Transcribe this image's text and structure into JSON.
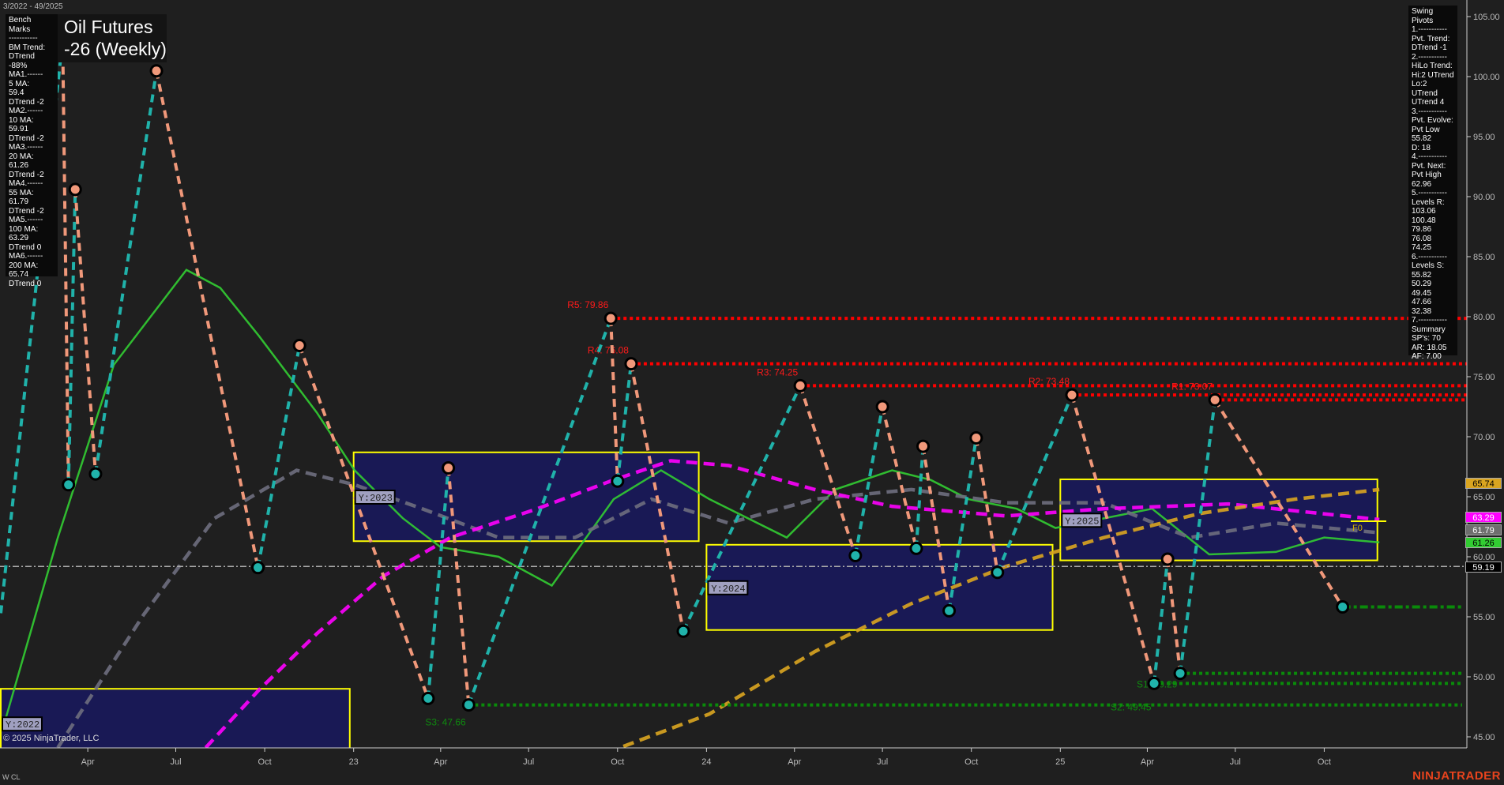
{
  "header": {
    "range": "3/2022 - 49/2025",
    "title_line1": "Oil Futures",
    "title_line2": "-26 (Weekly)"
  },
  "bench_marks": [
    "Bench Marks",
    "-----------",
    "BM Trend:",
    "DTrend -88%",
    "MA1.------",
    "5 MA:",
    "59.4",
    "DTrend -2",
    "MA2.------",
    "10 MA:",
    "59.91",
    "DTrend -2",
    "MA3.------",
    "20 MA:",
    "61.26",
    "DTrend -2",
    "MA4.------",
    "55 MA:",
    "61.79",
    "DTrend -2",
    "MA5.------",
    "100 MA:",
    "63.29",
    "DTrend 0",
    "MA6.------",
    "200 MA:",
    "65.74",
    "DTrend 0"
  ],
  "swing_pivots": [
    "Swing Pivots",
    "1.-----------",
    "Pvt. Trend:",
    "DTrend -1",
    "2.-----------",
    "HiLo Trend:",
    "Hi:2 UTrend",
    "Lo:2 UTrend",
    "UTrend 4",
    "3.-----------",
    "Pvt. Evolve:",
    "Pvt Low",
    "55.82",
    "D: 18",
    "4.-----------",
    "Pvt. Next:",
    "Pvt High",
    "62.96",
    "5.-----------",
    "Levels R:",
    "103.06",
    "100.48",
    "79.86",
    "76.08",
    "74.25",
    "6.-----------",
    "Levels S:",
    "55.82",
    "50.29",
    "49.45",
    "47.66",
    "32.38",
    "7.-----------",
    "Summary",
    "SP's: 70",
    "AR: 18.05",
    "AF: 7.00"
  ],
  "footer": {
    "copyright": "© 2025 NinjaTrader, LLC",
    "instrument": "W CL",
    "brand": "NINJATRADER"
  },
  "price_tags": [
    {
      "value": "65.74",
      "color": "#daa520",
      "text_color": "#000"
    },
    {
      "value": "63.29",
      "color": "#ff00ff",
      "text_color": "#fff"
    },
    {
      "value": "61.79",
      "color": "#6e6e6e",
      "text_color": "#fff"
    },
    {
      "value": "61.26",
      "color": "#32cd32",
      "text_color": "#000"
    },
    {
      "value": "59.19",
      "color": "#000000",
      "text_color": "#fff"
    }
  ],
  "chart_data": {
    "type": "line",
    "ylim": [
      45,
      105
    ],
    "yticks": [
      "105.00",
      "100.00",
      "95.00",
      "90.00",
      "85.00",
      "80.00",
      "75.00",
      "70.00",
      "65.00",
      "60.00",
      "55.00",
      "50.00",
      "45.00"
    ],
    "xticks": [
      {
        "label": "Apr",
        "date": "2022-04-01"
      },
      {
        "label": "Jul",
        "date": "2022-07-01"
      },
      {
        "label": "Oct",
        "date": "2022-10-01"
      },
      {
        "label": "23",
        "date": "2023-01-01"
      },
      {
        "label": "Apr",
        "date": "2023-04-01"
      },
      {
        "label": "Jul",
        "date": "2023-07-01"
      },
      {
        "label": "Oct",
        "date": "2023-10-01"
      },
      {
        "label": "24",
        "date": "2024-01-01"
      },
      {
        "label": "Apr",
        "date": "2024-04-01"
      },
      {
        "label": "Jul",
        "date": "2024-07-01"
      },
      {
        "label": "Oct",
        "date": "2024-10-01"
      },
      {
        "label": "25",
        "date": "2025-01-01"
      },
      {
        "label": "Apr",
        "date": "2025-04-01"
      },
      {
        "label": "Jul",
        "date": "2025-07-01"
      },
      {
        "label": "Oct",
        "date": "2025-10-01"
      }
    ],
    "last_price": 59.19,
    "swing_legs": [
      [
        "2022-01-01",
        55.3
      ],
      [
        "2022-03-06",
        103.06
      ],
      [
        "2022-03-12",
        66.0
      ],
      [
        "2022-03-19",
        90.6
      ],
      [
        "2022-04-09",
        66.9
      ],
      [
        "2022-06-11",
        100.48
      ],
      [
        "2022-09-24",
        59.1
      ],
      [
        "2022-11-06",
        77.6
      ],
      [
        "2023-03-19",
        48.2
      ],
      [
        "2023-04-09",
        67.4
      ],
      [
        "2023-04-30",
        47.66
      ],
      [
        "2023-09-24",
        79.86
      ],
      [
        "2023-10-01",
        66.3
      ],
      [
        "2023-10-15",
        76.08
      ],
      [
        "2023-12-08",
        53.8
      ],
      [
        "2024-04-07",
        74.25
      ],
      [
        "2024-06-03",
        60.1
      ],
      [
        "2024-07-01",
        72.5
      ],
      [
        "2024-08-05",
        60.7
      ],
      [
        "2024-08-12",
        69.2
      ],
      [
        "2024-09-08",
        55.5
      ],
      [
        "2024-10-06",
        69.9
      ],
      [
        "2024-10-28",
        58.7
      ],
      [
        "2025-01-13",
        73.48
      ],
      [
        "2025-04-08",
        49.45
      ],
      [
        "2025-04-22",
        59.8
      ],
      [
        "2025-05-05",
        50.29
      ],
      [
        "2025-06-10",
        73.07
      ],
      [
        "2025-10-20",
        55.82
      ]
    ],
    "resistance": [
      {
        "label": "R5: 79.86",
        "value": 79.86,
        "from": "2023-09-24"
      },
      {
        "label": "R4: 76.08",
        "value": 76.08,
        "from": "2023-10-15"
      },
      {
        "label": "R3: 74.25",
        "value": 74.25,
        "from": "2024-04-07"
      },
      {
        "label": "R2: 73.48",
        "value": 73.48,
        "from": "2025-01-13"
      },
      {
        "label": "R1: 73.07",
        "value": 73.07,
        "from": "2025-06-10"
      }
    ],
    "support": [
      {
        "label": "S3: 47.66",
        "value": 47.66,
        "from": "2023-04-30"
      },
      {
        "label": "S2: 49.45",
        "value": 49.45,
        "from": "2025-04-08"
      },
      {
        "label": "S1: 50.29",
        "value": 50.29,
        "from": "2025-05-05"
      },
      {
        "label": "",
        "value": 55.82,
        "from": "2025-10-20"
      }
    ],
    "year_boxes": [
      {
        "label": "Y:2022",
        "from": "2022-01-01",
        "to": "2022-12-28",
        "high": 49.0,
        "low": 44.0
      },
      {
        "label": "Y:2023",
        "from": "2023-01-01",
        "to": "2023-12-24",
        "high": 68.7,
        "low": 61.3
      },
      {
        "label": "Y:2024",
        "from": "2024-01-01",
        "to": "2024-12-24",
        "high": 61.0,
        "low": 53.9
      },
      {
        "label": "Y:2025",
        "from": "2025-01-01",
        "to": "2025-11-25",
        "high": 66.45,
        "low": 59.7
      }
    ],
    "f0_label": "F0",
    "series": [
      {
        "color": "#32cd32",
        "dashed": false,
        "points": [
          [
            "2022-01-06",
            46.5
          ],
          [
            "2022-03-01",
            61.6
          ],
          [
            "2022-04-28",
            76.0
          ],
          [
            "2022-07-12",
            83.9
          ],
          [
            "2022-08-16",
            82.4
          ],
          [
            "2022-09-25",
            78.4
          ],
          [
            "2022-11-24",
            72.0
          ],
          [
            "2023-01-02",
            67.2
          ],
          [
            "2023-02-21",
            63.2
          ],
          [
            "2023-04-01",
            60.8
          ],
          [
            "2023-05-31",
            60.0
          ],
          [
            "2023-07-25",
            57.6
          ],
          [
            "2023-09-27",
            64.8
          ],
          [
            "2023-11-15",
            67.2
          ],
          [
            "2024-01-04",
            64.8
          ],
          [
            "2024-02-13",
            63.2
          ],
          [
            "2024-03-24",
            61.6
          ],
          [
            "2024-05-13",
            65.6
          ],
          [
            "2024-07-11",
            67.2
          ],
          [
            "2024-08-20",
            66.4
          ],
          [
            "2024-09-28",
            64.8
          ],
          [
            "2024-11-17",
            64.0
          ],
          [
            "2024-12-27",
            62.4
          ],
          [
            "2025-02-15",
            63.2
          ],
          [
            "2025-04-06",
            64.0
          ],
          [
            "2025-06-04",
            60.2
          ],
          [
            "2025-08-12",
            60.4
          ],
          [
            "2025-10-01",
            61.6
          ],
          [
            "2025-11-27",
            61.2
          ]
        ]
      },
      {
        "color": "#6e6e7e",
        "dashed": true,
        "points": [
          [
            "2022-03-01",
            44.1
          ],
          [
            "2022-05-29",
            55.2
          ],
          [
            "2022-08-10",
            63.2
          ],
          [
            "2022-11-03",
            67.2
          ],
          [
            "2023-01-02",
            66.0
          ],
          [
            "2023-03-13",
            64.0
          ],
          [
            "2023-05-31",
            61.6
          ],
          [
            "2023-08-18",
            61.6
          ],
          [
            "2023-11-05",
            64.8
          ],
          [
            "2024-01-24",
            62.8
          ],
          [
            "2024-04-22",
            64.8
          ],
          [
            "2024-07-31",
            65.6
          ],
          [
            "2024-11-06",
            64.5
          ],
          [
            "2025-02-15",
            64.5
          ],
          [
            "2025-05-15",
            61.6
          ],
          [
            "2025-08-12",
            62.8
          ],
          [
            "2025-11-27",
            62.0
          ]
        ]
      },
      {
        "color": "#ff00ff",
        "dashed": true,
        "points": [
          [
            "2022-08-01",
            44.1
          ],
          [
            "2022-09-25",
            48.9
          ],
          [
            "2022-11-24",
            53.6
          ],
          [
            "2023-02-01",
            58.4
          ],
          [
            "2023-04-11",
            61.6
          ],
          [
            "2023-07-10",
            64.0
          ],
          [
            "2023-09-27",
            66.4
          ],
          [
            "2023-11-25",
            68.0
          ],
          [
            "2024-01-24",
            67.6
          ],
          [
            "2024-04-22",
            65.6
          ],
          [
            "2024-07-11",
            64.2
          ],
          [
            "2024-11-06",
            63.4
          ],
          [
            "2025-02-15",
            64.0
          ],
          [
            "2025-06-24",
            64.4
          ],
          [
            "2025-11-27",
            63.1
          ]
        ]
      },
      {
        "color": "#daa520",
        "dashed": true,
        "points": [
          [
            "2023-10-07",
            44.2
          ],
          [
            "2024-01-04",
            46.9
          ],
          [
            "2024-04-22",
            52.1
          ],
          [
            "2024-07-31",
            56.1
          ],
          [
            "2024-11-06",
            59.2
          ],
          [
            "2025-02-15",
            61.6
          ],
          [
            "2025-05-25",
            63.6
          ],
          [
            "2025-09-01",
            64.8
          ],
          [
            "2025-11-27",
            65.6
          ]
        ]
      }
    ]
  }
}
